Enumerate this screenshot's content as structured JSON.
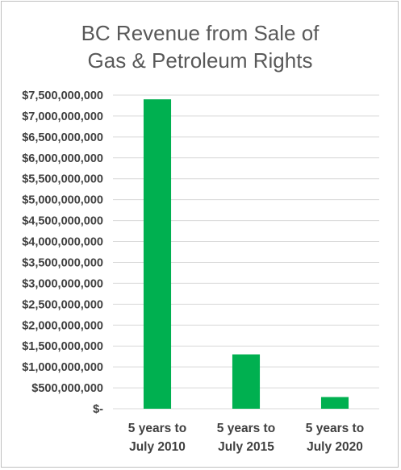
{
  "chart_data": {
    "type": "bar",
    "title_lines": [
      "BC Revenue from Sale of",
      "Gas & Petroleum Rights"
    ],
    "categories": [
      [
        "5 years to",
        "July 2010"
      ],
      [
        "5 years to",
        "July 2015"
      ],
      [
        "5 years to",
        "July 2020"
      ]
    ],
    "values": [
      7400000000,
      1300000000,
      280000000
    ],
    "ylim": [
      0,
      7500000000
    ],
    "y_ticks": [
      {
        "value": 7500000000,
        "label": "$7,500,000,000"
      },
      {
        "value": 7000000000,
        "label": "$7,000,000,000"
      },
      {
        "value": 6500000000,
        "label": "$6,500,000,000"
      },
      {
        "value": 6000000000,
        "label": "$6,000,000,000"
      },
      {
        "value": 5500000000,
        "label": "$5,500,000,000"
      },
      {
        "value": 5000000000,
        "label": "$5,000,000,000"
      },
      {
        "value": 4500000000,
        "label": "$4,500,000,000"
      },
      {
        "value": 4000000000,
        "label": "$4,000,000,000"
      },
      {
        "value": 3500000000,
        "label": "$3,500,000,000"
      },
      {
        "value": 3000000000,
        "label": "$3,000,000,000"
      },
      {
        "value": 2500000000,
        "label": "$2,500,000,000"
      },
      {
        "value": 2000000000,
        "label": "$2,000,000,000"
      },
      {
        "value": 1500000000,
        "label": "$1,500,000,000"
      },
      {
        "value": 1000000000,
        "label": "$1,000,000,000"
      },
      {
        "value": 500000000,
        "label": "$500,000,000"
      },
      {
        "value": 0,
        "label": "$-"
      }
    ],
    "grid": true,
    "legend": "none",
    "bar_color": "#00b050"
  }
}
